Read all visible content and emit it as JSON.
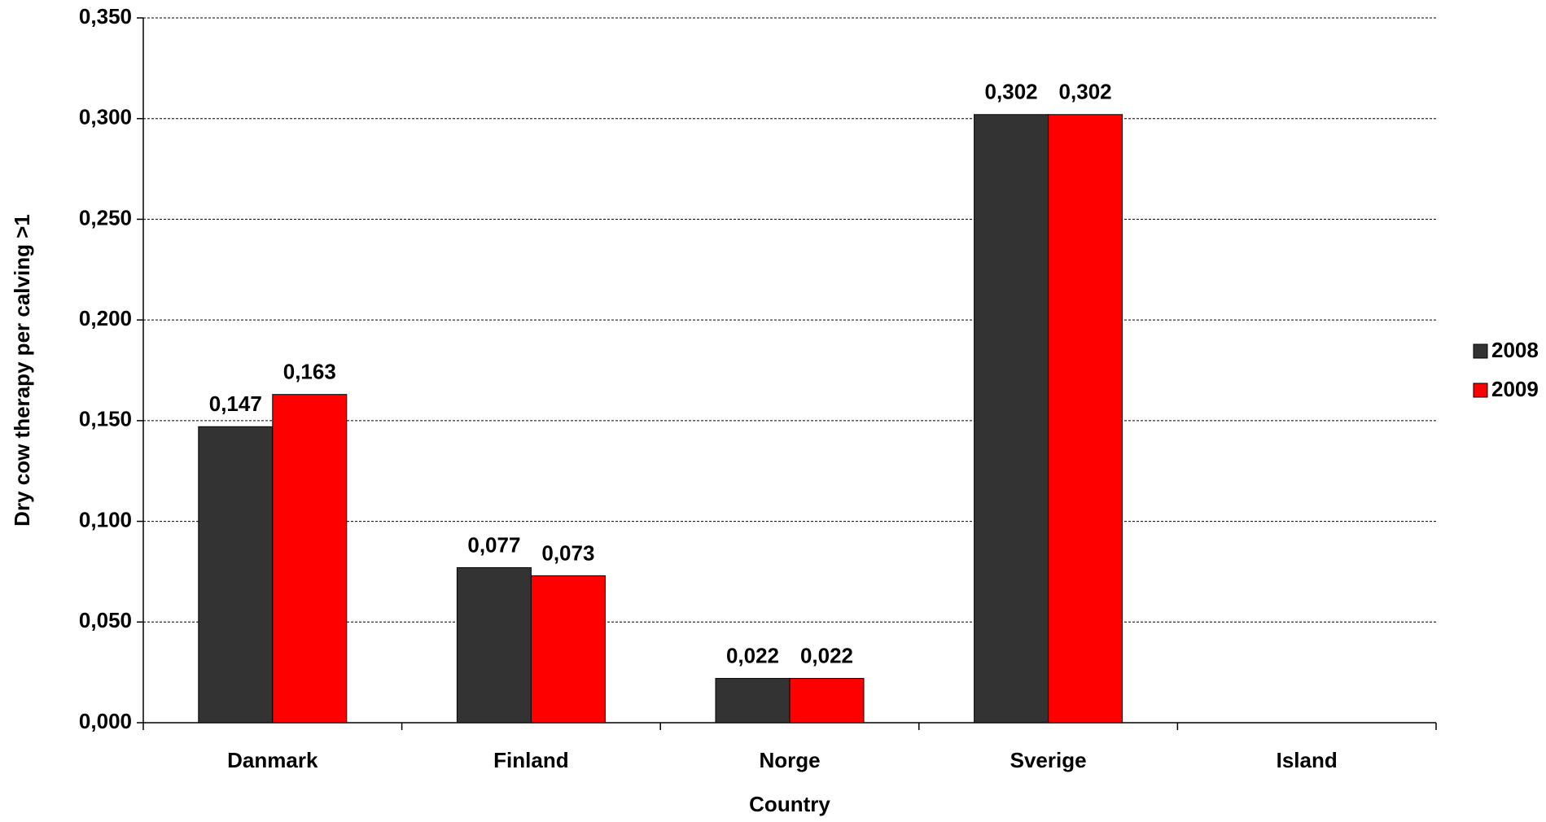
{
  "chart_data": {
    "type": "bar",
    "x_label": "Country",
    "y_label": "Dry cow therapy per calving >1",
    "categories": [
      "Danmark",
      "Finland",
      "Norge",
      "Sverige",
      "Island"
    ],
    "series": [
      {
        "name": "2008",
        "color": "#333333",
        "values": [
          0.147,
          0.077,
          0.022,
          0.302,
          null
        ],
        "value_labels": [
          "0,147",
          "0,077",
          "0,022",
          "0,302",
          null
        ]
      },
      {
        "name": "2009",
        "color": "#ff0000",
        "values": [
          0.163,
          0.073,
          0.022,
          0.302,
          null
        ],
        "value_labels": [
          "0,163",
          "0,073",
          "0,022",
          "0,302",
          null
        ]
      }
    ],
    "ylim": [
      0,
      0.35
    ],
    "yticks": [
      {
        "value": 0,
        "label": "0,000"
      },
      {
        "value": 0.05,
        "label": "0,050"
      },
      {
        "value": 0.1,
        "label": "0,100"
      },
      {
        "value": 0.15,
        "label": "0,150"
      },
      {
        "value": 0.2,
        "label": "0,200"
      },
      {
        "value": 0.25,
        "label": "0,250"
      },
      {
        "value": 0.3,
        "label": "0,300"
      },
      {
        "value": 0.35,
        "label": "0,350"
      }
    ],
    "grid": true,
    "legend": "right"
  }
}
